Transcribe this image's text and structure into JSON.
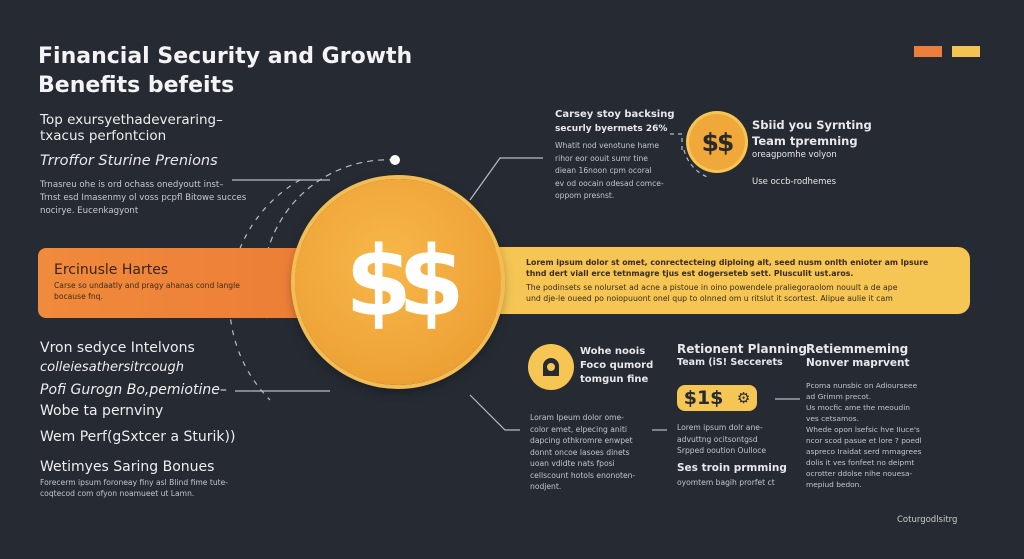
{
  "header": {
    "title_line1": "Financial Security and Growth",
    "title_line2": "Benefits befeits"
  },
  "accent_colors": {
    "orange": "#ee7f3a",
    "yellow": "#f5c34f",
    "background": "#262a33"
  },
  "left_top": {
    "line1": "Top exursyethadeveraring–",
    "line2": "txacus perfontcion",
    "subtitle": "Trroffor Sturine Prenions",
    "text": [
      "Trnasreu ohe is ord ochass onedyoutt inst–",
      "Trnst esd Imasenmy ol voss pcpfl Bitowe succes",
      "nocirye. Eucenkagyont"
    ]
  },
  "orange_bar": {
    "title": "Ercinusle Hartes",
    "text": [
      "Carse so undaatly and pragy ahanas cond langle",
      "bocause fnq."
    ]
  },
  "coin": {
    "symbol": "$$"
  },
  "yellow_bar": {
    "line1": "Lorem ipsum dolor st omet, conrectecteing diploing alt, seed nusm onlth enioter am lpsure",
    "line2": "thnd dert viall erce tetnmagre tjus est dogerseteb sett. Plusculit ust.aros.",
    "line3": "The podinsets se nolurset ad acne a pistoue in oino powendele praliegoraolom nouult a de ape",
    "line4": "und dje-le oueed po noiopuuont onel qup to olnned om u ritslut it scortest. Alipue aulie it cam"
  },
  "top_middle": {
    "title": "Carsey stoy backsing",
    "subtitle": "securly byermets 26%",
    "text": [
      "Whatit  nod  venotune  hame",
      "rihor  eor  oouit  sumr  tine",
      "diean  16noon  cpm  ocoral",
      "ev od oocain odesad comce-",
      "oppom presnst."
    ]
  },
  "top_right": {
    "coin_symbol": "$$",
    "title1": "Sbiid you Syrnting",
    "title2": "Team tpremning",
    "subtitle": "oreagpomhe volyon",
    "note": "Use occb-rodhemes"
  },
  "left_list": {
    "items": [
      "Vron sedyce Intelvons",
      "colleiesathersitrcough",
      "Pofi Gurogn Bo,pemiotine–",
      "Wobe ta pernviny",
      "Wem Perf(gSxtcer a Sturik))"
    ],
    "section_title": "Wetimyes Saring Bonues",
    "section_text": [
      "Forecerm ipsum foroneay finy asl Blind fime tute-",
      "coqtecod com ofyon noamueet ut Lamn."
    ]
  },
  "bottom_icon_block": {
    "icon": "lock-icon",
    "title": [
      "Wohe noois",
      "Foco qumord",
      "tomgun fine"
    ],
    "text": [
      "Loram  Ipeum  dolor  ome-",
      "color  emet,  elpecing  aniti",
      "dapcing  othkromre  enwpet",
      "donnt  oncoe  lasoes  dinets",
      "uoan  vdidte   nats  fposi",
      "cellscount  hotols  enonoten-",
      "nodjent."
    ]
  },
  "retirement": {
    "title": "Retionent Planning",
    "subtitle": "Team (iS! Seccerets",
    "badge": "$1$",
    "badge_icon": "dollar-gear-icon",
    "text": [
      "Lorem ipsum dolr ane-",
      "advuttng ocitsontgsd",
      "Srpped ooution  Oulloce"
    ],
    "title2": "Ses troin prmming",
    "text2": "oyomtem bagih prorfet ct"
  },
  "right_col": {
    "title": "Retiemmeming",
    "subtitle": "Nonver maprvent",
    "text": [
      "Pcoma  nunsbic  on  Adiourseee",
      "ad  Grimm  precot.",
      "Us  mocfic  ame  the  meoudin",
      "ves  cetsamos.",
      "Whede  opon  lsefsic  hve IIuce's",
      "ncor  scod  pasue  et  lore  ?  poedl",
      "aspreco  Iraidat  serd  mmagrees",
      "dolis  it  ves  fonfeet  no  deipmt",
      "ocrotter  ddolse  nihe  nouesa-",
      "mepiud  bedon."
    ]
  },
  "footer": {
    "credit": "Coturgodlsitrg"
  }
}
